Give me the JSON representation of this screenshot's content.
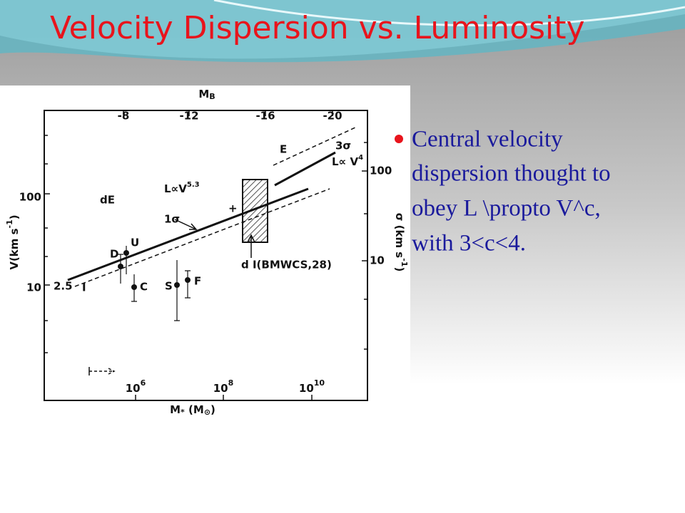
{
  "title": "Velocity Dispersion vs. Luminosity",
  "figure": {
    "top_axis": {
      "label": {
        "base": "M",
        "sub": "B"
      },
      "ticks": [
        "-8",
        "-12",
        "-16",
        "-20"
      ]
    },
    "left_axis": {
      "label": {
        "base": "V(km s",
        "sup": "-1",
        "end": ")"
      },
      "ticks": [
        "100",
        "10"
      ]
    },
    "right_axis": {
      "label": {
        "base": "σ (km s",
        "sup": "-1",
        "end": ")"
      },
      "ticks": [
        "100",
        "10"
      ]
    },
    "bottom_axis": {
      "label": {
        "base": "M",
        "sub": "*",
        "mid": " (M",
        "sub2": "⊙",
        "end": ")"
      },
      "ticks": [
        {
          "base": "10",
          "exp": "6"
        },
        {
          "base": "10",
          "exp": "8"
        },
        {
          "base": "10",
          "exp": "10"
        }
      ]
    },
    "annotations": {
      "dE": "dE",
      "E": "E",
      "law1": {
        "base": "L∝V",
        "exp": "5.3"
      },
      "law2": {
        "base": "L∝ V",
        "exp": "4"
      },
      "one_sigma": "1σ",
      "three_sigma": "3σ",
      "dI": "d I(BMWCS,28)",
      "slope": "2.5",
      "I": "I",
      "plus": "+"
    },
    "points": [
      "D",
      "U",
      "C",
      "S",
      "F"
    ]
  },
  "bullet": [
    "Central velocity",
    "dispersion thought to",
    "obey L \\propto V^c,",
    "with 3<c<4."
  ]
}
